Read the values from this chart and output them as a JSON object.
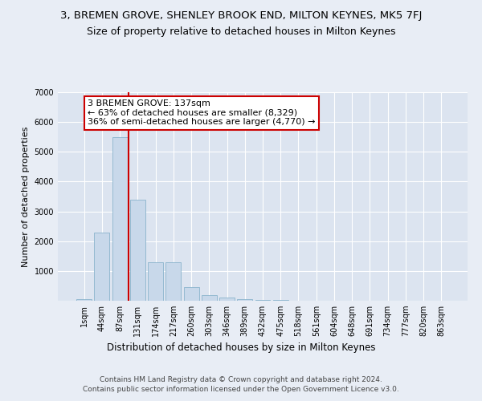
{
  "title1": "3, BREMEN GROVE, SHENLEY BROOK END, MILTON KEYNES, MK5 7FJ",
  "title2": "Size of property relative to detached houses in Milton Keynes",
  "xlabel": "Distribution of detached houses by size in Milton Keynes",
  "ylabel": "Number of detached properties",
  "bin_labels": [
    "1sqm",
    "44sqm",
    "87sqm",
    "131sqm",
    "174sqm",
    "217sqm",
    "260sqm",
    "303sqm",
    "346sqm",
    "389sqm",
    "432sqm",
    "475sqm",
    "518sqm",
    "561sqm",
    "604sqm",
    "648sqm",
    "691sqm",
    "734sqm",
    "777sqm",
    "820sqm",
    "863sqm"
  ],
  "bar_values": [
    50,
    2300,
    5500,
    3400,
    1300,
    1300,
    450,
    200,
    100,
    60,
    30,
    15,
    10,
    5,
    3,
    2,
    1,
    1,
    1,
    0,
    0
  ],
  "bar_color": "#c8d8ea",
  "bar_edge_color": "#8ab4cc",
  "vline_x": 2.5,
  "vline_color": "#cc0000",
  "annotation_text": "3 BREMEN GROVE: 137sqm\n← 63% of detached houses are smaller (8,329)\n36% of semi-detached houses are larger (4,770) →",
  "annotation_box_color": "#cc0000",
  "ylim": [
    0,
    7000
  ],
  "yticks": [
    0,
    1000,
    2000,
    3000,
    4000,
    5000,
    6000,
    7000
  ],
  "bg_color": "#e8edf5",
  "plot_bg_color": "#dce4f0",
  "grid_color": "#ffffff",
  "footer": "Contains HM Land Registry data © Crown copyright and database right 2024.\nContains public sector information licensed under the Open Government Licence v3.0.",
  "title1_fontsize": 9.5,
  "title2_fontsize": 9,
  "xlabel_fontsize": 8.5,
  "ylabel_fontsize": 8,
  "tick_fontsize": 7,
  "footer_fontsize": 6.5,
  "annot_fontsize": 8
}
